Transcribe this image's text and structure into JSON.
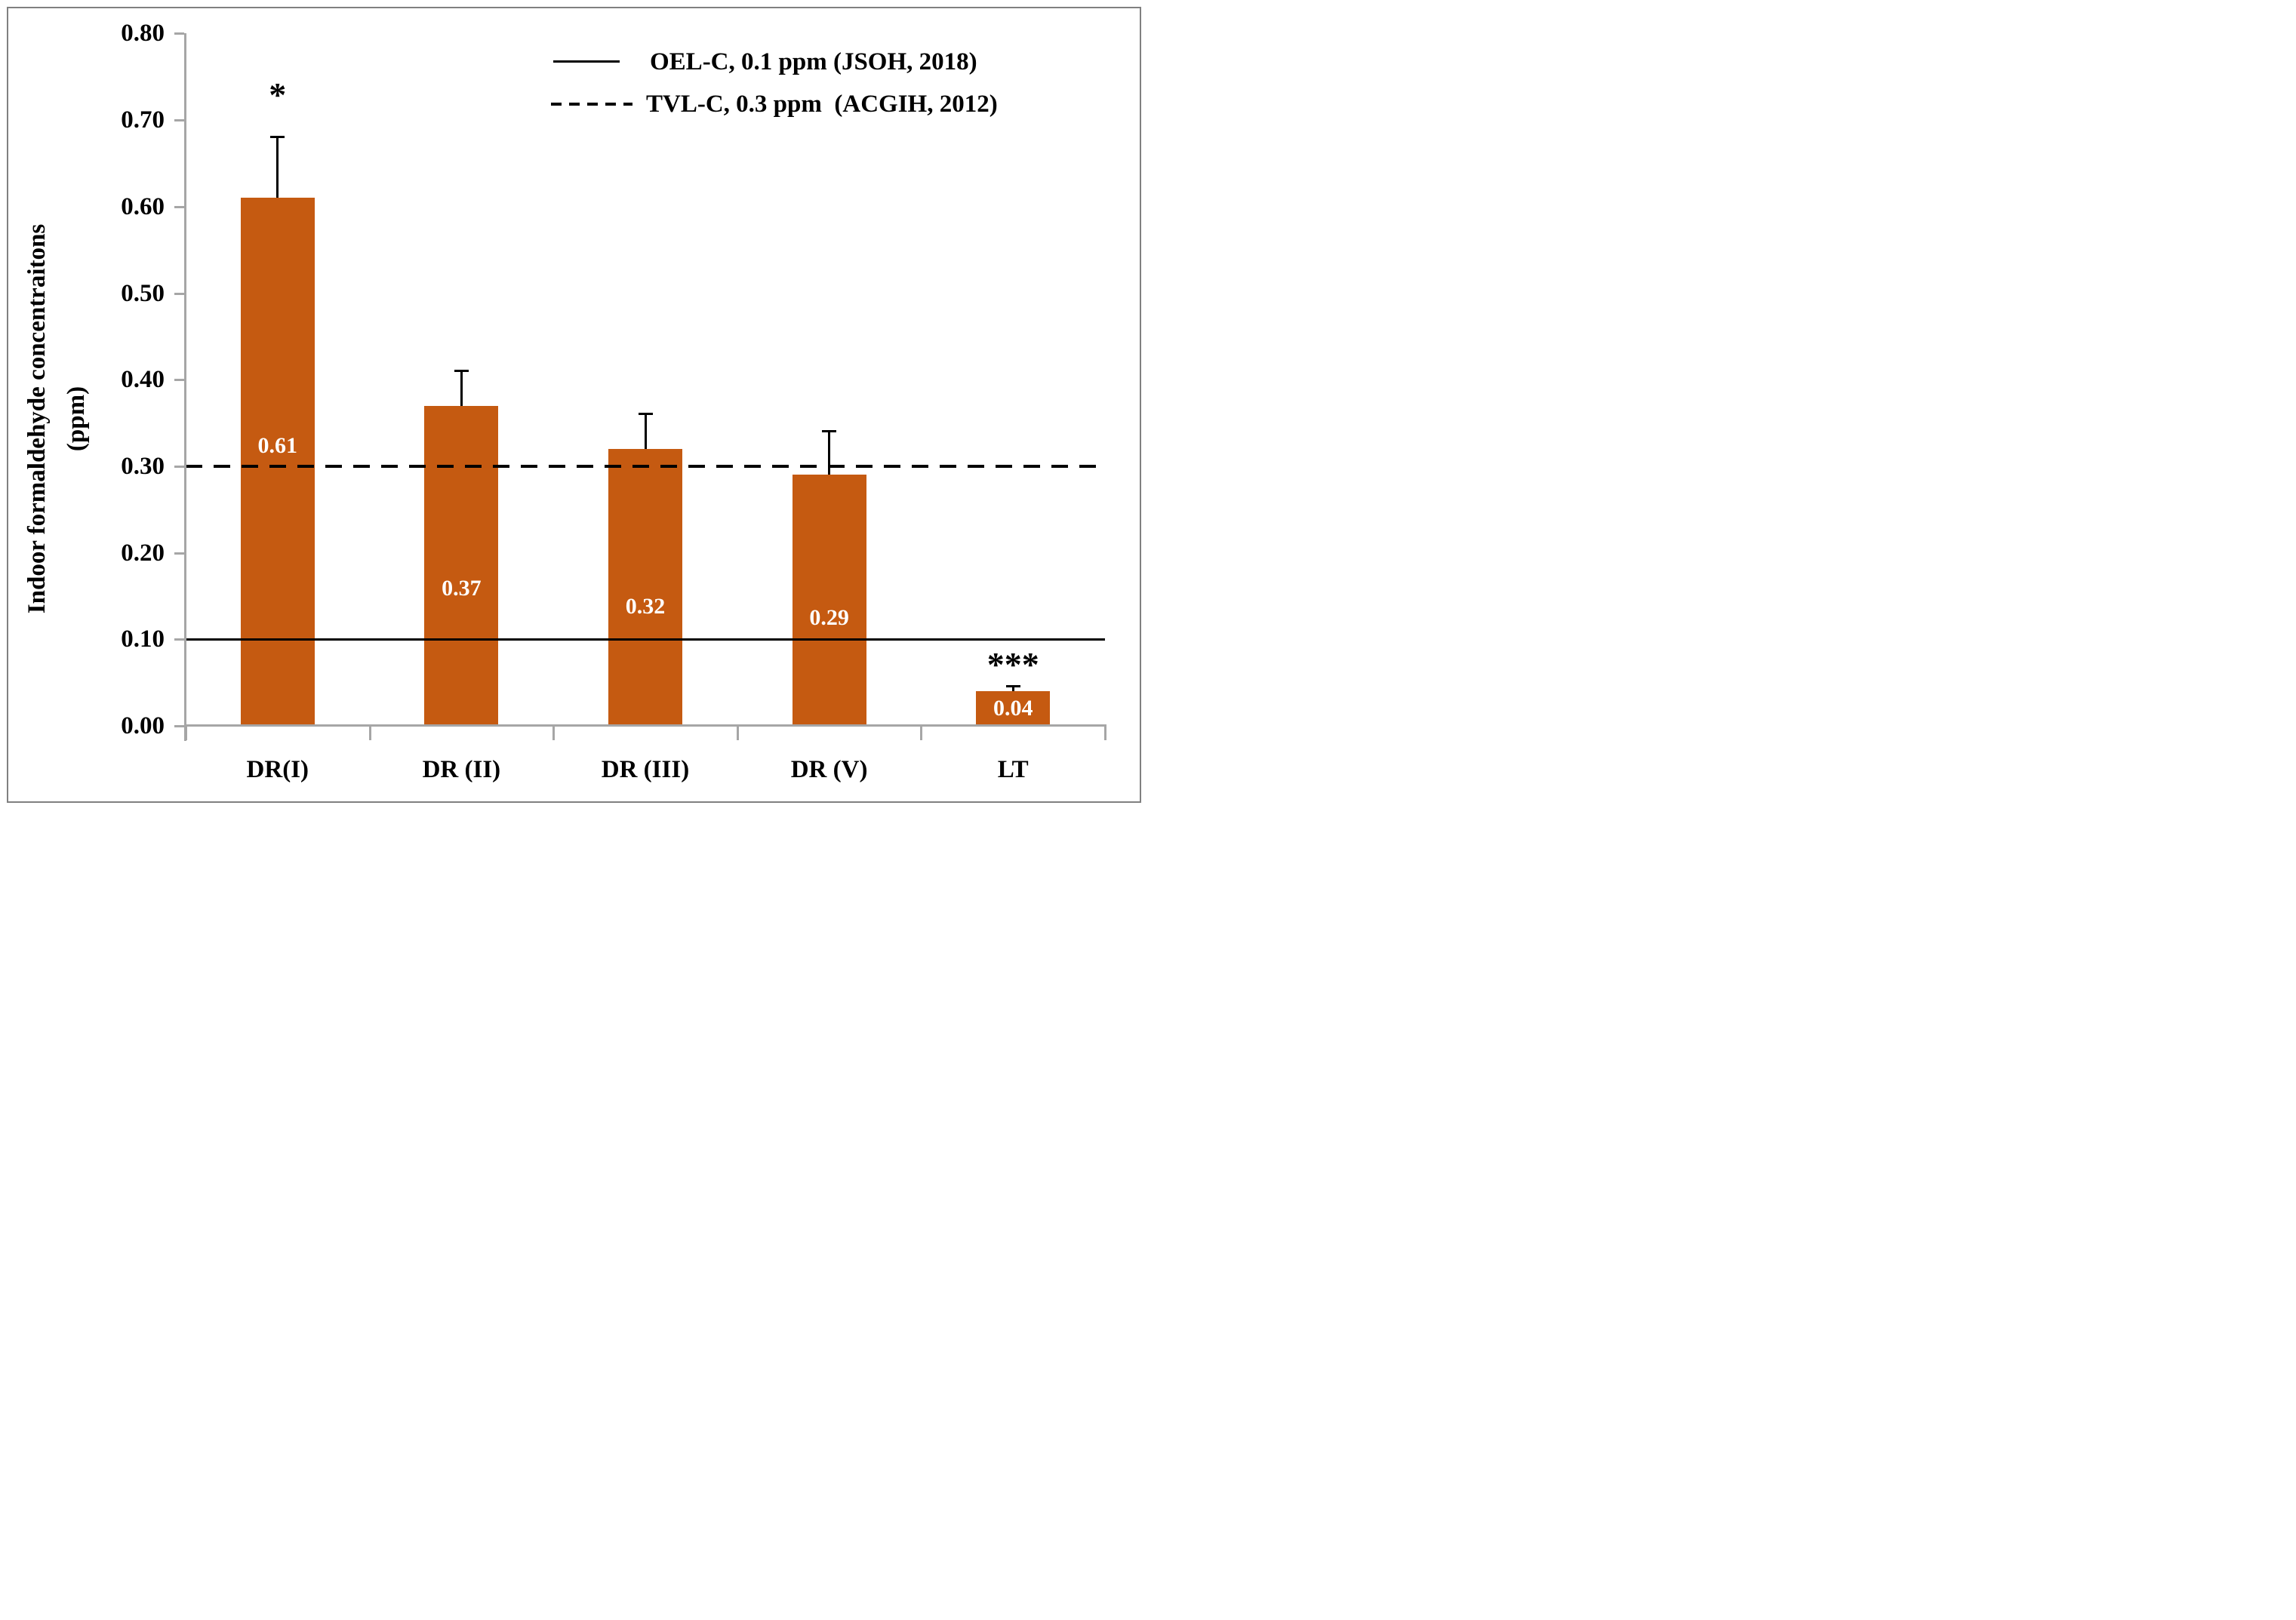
{
  "chart_data": {
    "type": "bar",
    "title": "",
    "categories": [
      "DR(I)",
      "DR (II)",
      "DR (III)",
      "DR (V)",
      "LT"
    ],
    "values": [
      0.61,
      0.37,
      0.32,
      0.29,
      0.04
    ],
    "bar_value_labels": [
      "0.61",
      "0.37",
      "0.32",
      "0.29",
      "0.04"
    ],
    "error_plus": [
      0.07,
      0.04,
      0.04,
      0.05,
      0.005
    ],
    "significance_markers": [
      "*",
      "",
      "",
      "",
      "***"
    ],
    "ylabel": "Indoor formaldehyde concentraitons (ppm)",
    "ylabel_line1": "Indoor formaldehyde concentraitons",
    "ylabel_line2": "(ppm)",
    "ylim": [
      0,
      0.8
    ],
    "ytick_step": 0.1,
    "ytick_labels": [
      "0.00",
      "0.10",
      "0.20",
      "0.30",
      "0.40",
      "0.50",
      "0.60",
      "0.70",
      "0.80"
    ],
    "grid": false,
    "legend_position": "top-right",
    "reference_lines": [
      {
        "style": "solid",
        "value": 0.1,
        "label": "OEL-C, 0.1 ppm (JSOH, 2018)"
      },
      {
        "style": "dashed",
        "value": 0.3,
        "label": "TVL-C, 0.3 ppm  (ACGIH, 2012)"
      }
    ],
    "colors": {
      "bar": "#C55A11",
      "bar_label_text": "#FFFFFF",
      "axis": "#A6A6A6",
      "border": "#808080",
      "line": "#000000"
    }
  }
}
